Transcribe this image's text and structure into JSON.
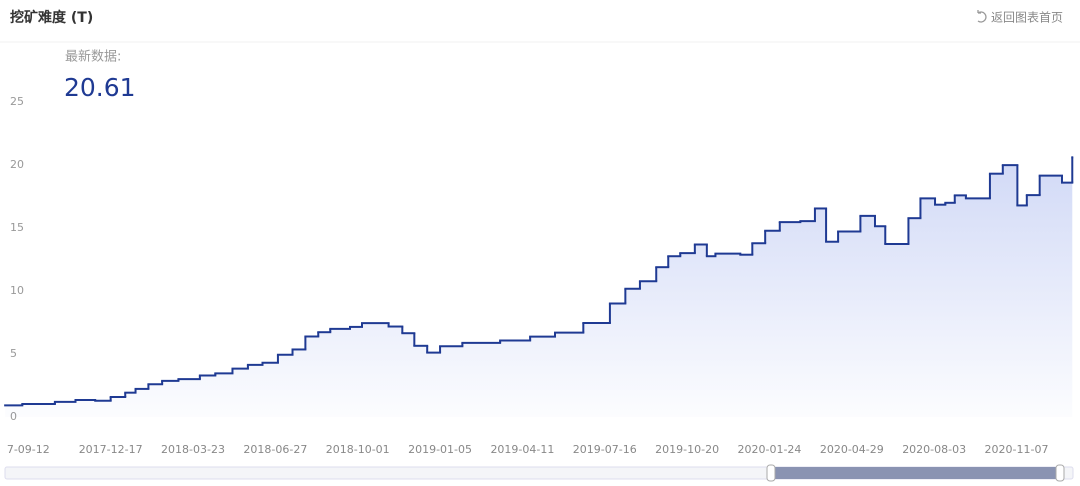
{
  "chart_data": {
    "type": "step-line",
    "title": "挖矿难度 (T)",
    "back_button": "返回图表首页",
    "latest_label": "最新数据:",
    "latest_value": 20.61,
    "color": "#1f3a93",
    "area_color": "#5b78e0",
    "x": [
      "2017-08-16",
      "2017-09-05",
      "2017-10-13",
      "2017-11-06",
      "2017-11-29",
      "2017-12-17",
      "2018-01-03",
      "2018-01-15",
      "2018-01-30",
      "2018-02-15",
      "2018-03-06",
      "2018-03-31",
      "2018-04-18",
      "2018-05-08",
      "2018-05-26",
      "2018-06-12",
      "2018-06-30",
      "2018-07-17",
      "2018-08-01",
      "2018-08-16",
      "2018-08-30",
      "2018-09-22",
      "2018-10-06",
      "2018-11-06",
      "2018-11-22",
      "2018-12-06",
      "2018-12-21",
      "2019-01-05",
      "2019-01-31",
      "2019-03-16",
      "2019-04-20",
      "2019-05-19",
      "2019-06-21",
      "2019-07-22",
      "2019-08-09",
      "2019-08-26",
      "2019-09-14",
      "2019-09-28",
      "2019-10-12",
      "2019-10-29",
      "2019-11-12",
      "2019-11-22",
      "2019-12-21",
      "2020-01-04",
      "2020-01-19",
      "2020-02-05",
      "2020-02-29",
      "2020-03-17",
      "2020-03-30",
      "2020-04-13",
      "2020-05-09",
      "2020-05-26",
      "2020-06-07",
      "2020-07-04",
      "2020-07-18",
      "2020-08-04",
      "2020-08-16",
      "2020-08-27",
      "2020-09-09",
      "2020-10-07",
      "2020-10-22",
      "2020-11-08",
      "2020-11-19",
      "2020-12-04",
      "2020-12-30",
      "2021-01-11"
    ],
    "values": [
      0.92,
      1.03,
      1.2,
      1.35,
      1.29,
      1.59,
      1.93,
      2.23,
      2.6,
      2.87,
      3.01,
      3.29,
      3.46,
      3.84,
      4.14,
      4.31,
      4.94,
      5.36,
      6.39,
      6.73,
      6.99,
      7.15,
      7.45,
      7.18,
      6.65,
      5.65,
      5.11,
      5.62,
      5.88,
      6.07,
      6.38,
      6.7,
      7.46,
      9.01,
      10.18,
      10.77,
      11.89,
      12.76,
      13.01,
      13.69,
      12.76,
      12.97,
      12.88,
      13.79,
      14.78,
      15.47,
      15.55,
      16.55,
      13.91,
      14.72,
      15.96,
      15.14,
      13.73,
      15.78,
      17.35,
      16.85,
      17.0,
      17.59,
      17.35,
      19.31,
      19.99,
      16.79,
      17.61,
      19.16,
      18.6,
      20.61
    ],
    "xlim": [
      "2017-08-10",
      "2021-01-20"
    ],
    "xticks": [
      {
        "value": "2017-09-12",
        "label": "7-09-12"
      },
      "2017-12-17",
      "2018-03-23",
      "2018-06-27",
      "2018-10-01",
      "2019-01-05",
      "2019-04-11",
      "2019-07-16",
      "2019-10-20",
      "2020-01-24",
      "2020-04-29",
      "2020-08-03",
      "2020-11-07"
    ],
    "ylim": [
      0,
      25
    ],
    "yticks": [
      0,
      5,
      10,
      15,
      20,
      25
    ]
  }
}
